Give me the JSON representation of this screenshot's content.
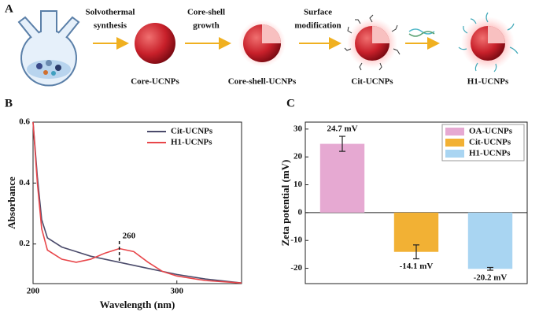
{
  "panel_labels": [
    "A",
    "B",
    "C"
  ],
  "scheme": {
    "arrow_labels": [
      [
        "Solvothermal",
        "synthesis"
      ],
      [
        "Core-shell",
        "growth"
      ],
      [
        "Surface",
        "modification"
      ]
    ],
    "product_labels": [
      "Core-UCNPs",
      "Core-shell-UCNPs",
      "Cit-UCNPs",
      "H1-UCNPs"
    ]
  },
  "chart_data": [
    {
      "type": "line",
      "xlabel": "Wavelength (nm)",
      "ylabel": "Absorbance",
      "x": [
        200,
        203,
        206,
        210,
        220,
        230,
        240,
        250,
        260,
        270,
        280,
        290,
        300,
        320,
        345
      ],
      "series": [
        {
          "name": "Cit-UCNPs",
          "color": "#4b4b6b",
          "values": [
            0.6,
            0.42,
            0.28,
            0.22,
            0.19,
            0.175,
            0.16,
            0.15,
            0.14,
            0.13,
            0.12,
            0.11,
            0.1,
            0.085,
            0.072
          ]
        },
        {
          "name": "H1-UCNPs",
          "color": "#e8464a",
          "values": [
            0.6,
            0.4,
            0.25,
            0.18,
            0.15,
            0.14,
            0.15,
            0.17,
            0.185,
            0.175,
            0.14,
            0.11,
            0.095,
            0.08,
            0.072
          ]
        }
      ],
      "annotations": [
        {
          "label": "260",
          "x": 260,
          "y0": 0.145,
          "y1": 0.215
        }
      ],
      "xlim": [
        200,
        345
      ],
      "xticks": [
        200,
        300
      ],
      "ylim": [
        0.07,
        0.6
      ],
      "yticks": [
        0.2,
        0.4,
        0.6
      ],
      "legend": "upper right"
    },
    {
      "type": "bar",
      "ylabel": "Zeta potential (mV)",
      "categories": [
        "OA-UCNPs",
        "Cit-UCNPs",
        "H1-UCNPs"
      ],
      "values": [
        24.7,
        -14.1,
        -20.2
      ],
      "value_labels": [
        "24.7 mV",
        "-14.1 mV",
        "-20.2 mV"
      ],
      "errors": [
        2.7,
        2.5,
        0.5
      ],
      "colors": [
        "#e6a9d2",
        "#f2b134",
        "#a9d5f2"
      ],
      "ylim": [
        -25.5,
        32.5
      ],
      "yticks": [
        -20,
        -10,
        0,
        10,
        20,
        30
      ],
      "legend": "upper right"
    }
  ]
}
